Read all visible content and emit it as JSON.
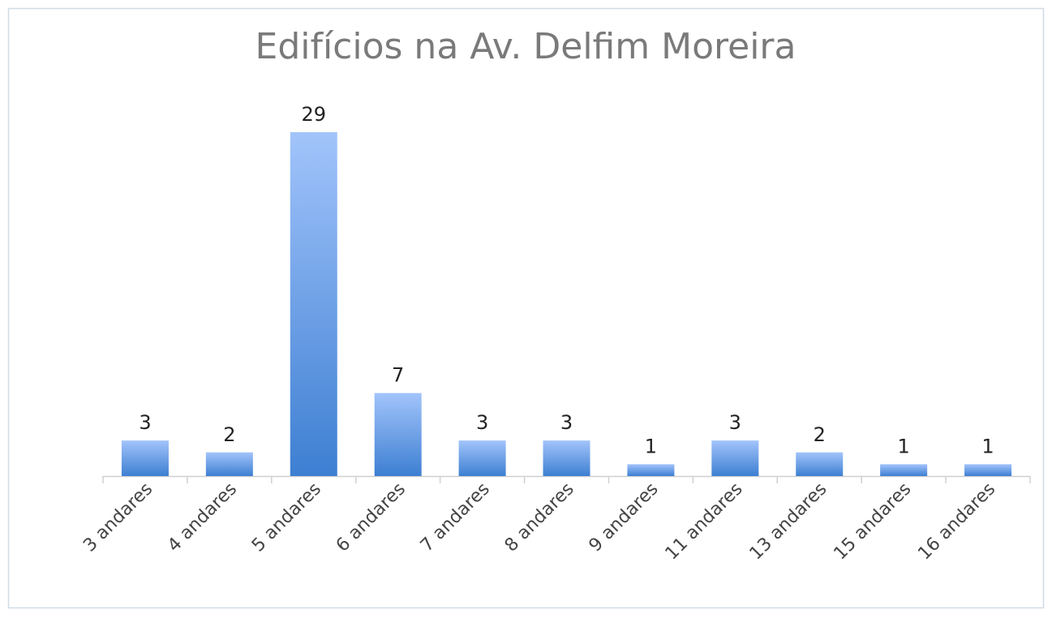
{
  "chart_data": {
    "type": "bar",
    "title": "Edifícios na Av. Delfim Moreira",
    "categories": [
      "3 andares",
      "4 andares",
      "5 andares",
      "6 andares",
      "7 andares",
      "8 andares",
      "9 andares",
      "11 andares",
      "13 andares",
      "15 andares",
      "16 andares"
    ],
    "values": [
      3,
      2,
      29,
      7,
      3,
      3,
      1,
      3,
      2,
      1,
      1
    ]
  }
}
